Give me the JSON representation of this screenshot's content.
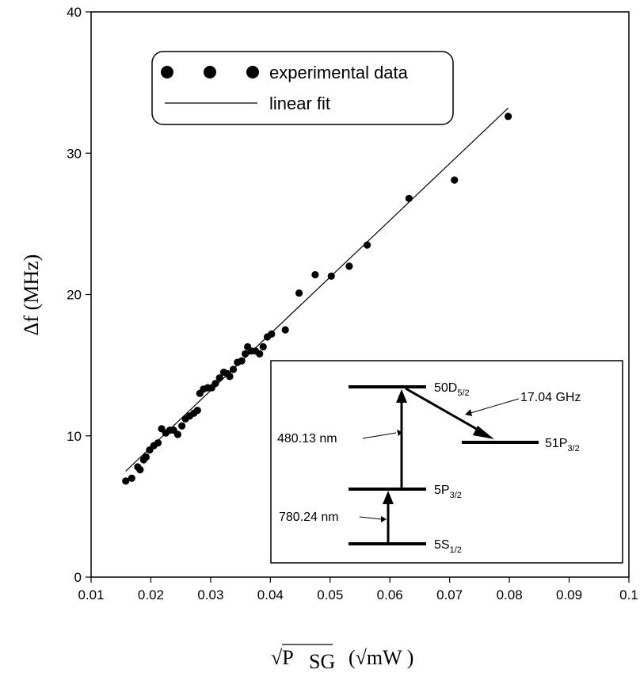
{
  "chart_data": {
    "type": "scatter",
    "xlabel": "√P",
    "xlabel_sub": "SG",
    "xlabel_units": "(√mW )",
    "ylabel": "Δf  (MHz)",
    "xlim": [
      0.01,
      0.1
    ],
    "ylim": [
      0,
      40
    ],
    "xticks": [
      "0.01",
      "0.02",
      "0.03",
      "0.04",
      "0.05",
      "0.06",
      "0.07",
      "0.08",
      "0.09",
      "0.1"
    ],
    "yticks": [
      "0",
      "10",
      "20",
      "30",
      "40"
    ],
    "series": [
      {
        "name": "experimental data",
        "x": [
          0.0158,
          0.0168,
          0.0178,
          0.0182,
          0.0188,
          0.0192,
          0.0198,
          0.0205,
          0.0212,
          0.0218,
          0.0225,
          0.0232,
          0.0238,
          0.0245,
          0.0252,
          0.0258,
          0.0265,
          0.0272,
          0.0278,
          0.0282,
          0.0288,
          0.0295,
          0.0302,
          0.0308,
          0.0315,
          0.0322,
          0.0328,
          0.0332,
          0.0338,
          0.0345,
          0.0352,
          0.0358,
          0.0362,
          0.0368,
          0.0375,
          0.0382,
          0.0388,
          0.0395,
          0.0402,
          0.0425,
          0.0448,
          0.0475,
          0.0502,
          0.0532,
          0.0562,
          0.0632,
          0.0708,
          0.0798
        ],
        "y": [
          6.8,
          7.0,
          7.8,
          7.6,
          8.3,
          8.5,
          9.0,
          9.3,
          9.5,
          10.5,
          10.2,
          10.4,
          10.4,
          10.1,
          10.7,
          11.2,
          11.4,
          11.6,
          11.8,
          13.0,
          13.3,
          13.4,
          13.4,
          13.7,
          14.1,
          14.5,
          14.4,
          14.2,
          14.7,
          15.2,
          15.3,
          15.8,
          16.3,
          16.0,
          16.0,
          15.8,
          16.3,
          17.0,
          17.2,
          17.5,
          20.1,
          21.4,
          21.3,
          22.0,
          23.5,
          26.8,
          28.1,
          32.6
        ]
      },
      {
        "name": "linear fit",
        "x": [
          0.0158,
          0.0798
        ],
        "y": [
          7.5,
          33.2
        ]
      }
    ],
    "legend": {
      "position": "top-left",
      "entries": [
        "experimental data",
        "linear fit"
      ]
    },
    "inset": {
      "levels": [
        {
          "main": "50D",
          "sub": "5/2"
        },
        {
          "main": "51P",
          "sub": "3/2"
        },
        {
          "main": "5P",
          "sub": "3/2"
        },
        {
          "main": "5S",
          "sub": "1/2"
        }
      ],
      "labels": {
        "blue_transition": "480.13 nm",
        "red_transition": "780.24 nm",
        "microwave": "17.04 GHz"
      }
    }
  }
}
